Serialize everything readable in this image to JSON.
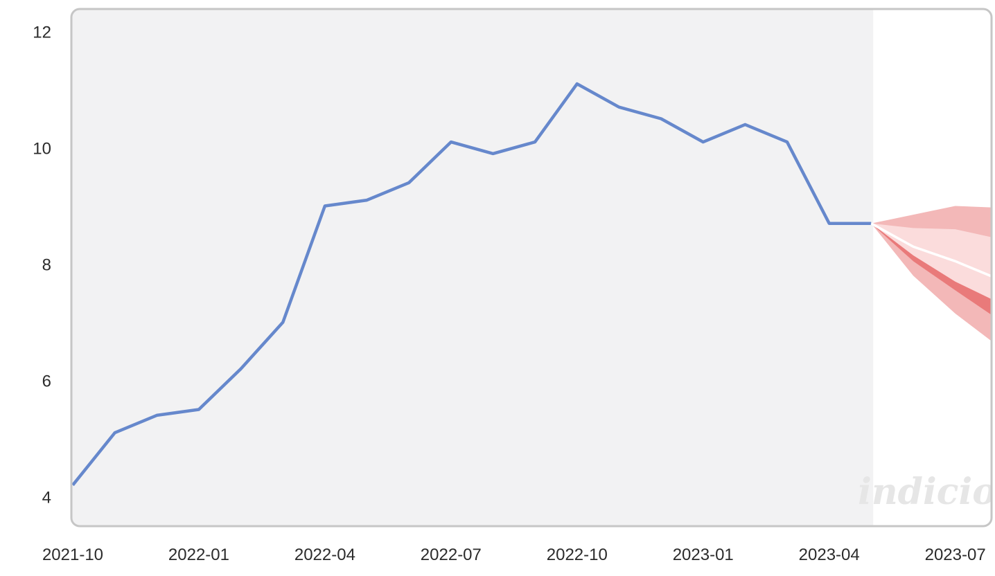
{
  "chart_data": {
    "type": "line",
    "title": "",
    "xlabel": "",
    "ylabel": "",
    "ylim": [
      3.5,
      12.4
    ],
    "xlim": [
      "2021-10",
      "2023-07"
    ],
    "grid": false,
    "legend": "none",
    "y_ticks": [
      "4",
      "6",
      "8",
      "10",
      "12"
    ],
    "x_ticks": [
      "2021-10",
      "2022-01",
      "2022-04",
      "2022-07",
      "2022-10",
      "2023-01",
      "2023-04",
      "2023-07"
    ],
    "series": [
      {
        "values": [
          {
            "x": "2021-10",
            "y": 4.2
          },
          {
            "x": "2021-11",
            "y": 5.1
          },
          {
            "x": "2021-12",
            "y": 5.4
          },
          {
            "x": "2022-01",
            "y": 5.5
          },
          {
            "x": "2022-02",
            "y": 6.2
          },
          {
            "x": "2022-03",
            "y": 7.0
          },
          {
            "x": "2022-04",
            "y": 9.0
          },
          {
            "x": "2022-05",
            "y": 9.1
          },
          {
            "x": "2022-06",
            "y": 9.4
          },
          {
            "x": "2022-07",
            "y": 10.1
          },
          {
            "x": "2022-08",
            "y": 9.9
          },
          {
            "x": "2022-09",
            "y": 10.1
          },
          {
            "x": "2022-10",
            "y": 11.1
          },
          {
            "x": "2022-11",
            "y": 10.7
          },
          {
            "x": "2022-12",
            "y": 10.5
          },
          {
            "x": "2023-01",
            "y": 10.1
          },
          {
            "x": "2023-02",
            "y": 10.4
          },
          {
            "x": "2023-03",
            "y": 10.1
          },
          {
            "x": "2023-04",
            "y": 8.7
          },
          {
            "x": "2023-05",
            "y": 8.7
          }
        ]
      }
    ],
    "forecast": {
      "x": [
        "2023-05",
        "2023-06",
        "2023-07",
        "2023-08"
      ],
      "median": [
        8.7,
        8.3,
        8.05,
        7.75
      ],
      "inner_band": {
        "upper": [
          8.7,
          8.62,
          8.6,
          8.44
        ],
        "lower": [
          8.7,
          8.15,
          7.7,
          7.35
        ]
      },
      "middle_band": {
        "upper": [
          8.7,
          8.55,
          8.4,
          8.17
        ],
        "lower": [
          8.7,
          8.05,
          7.55,
          7.06
        ]
      },
      "outer_band": {
        "upper": [
          8.7,
          8.85,
          9.0,
          8.97
        ],
        "lower": [
          8.7,
          7.8,
          7.15,
          6.6
        ]
      }
    },
    "colors": {
      "line": "#6688cc",
      "history_background": "#f2f2f3",
      "forecast_background": "#ffffff",
      "border": "#c6c6c6",
      "band_outer": "#f3b8b8",
      "band_middle": "#e97a7a",
      "band_inner": "#fbdcdc",
      "median": "#ffffff"
    },
    "watermark": "indicio"
  }
}
